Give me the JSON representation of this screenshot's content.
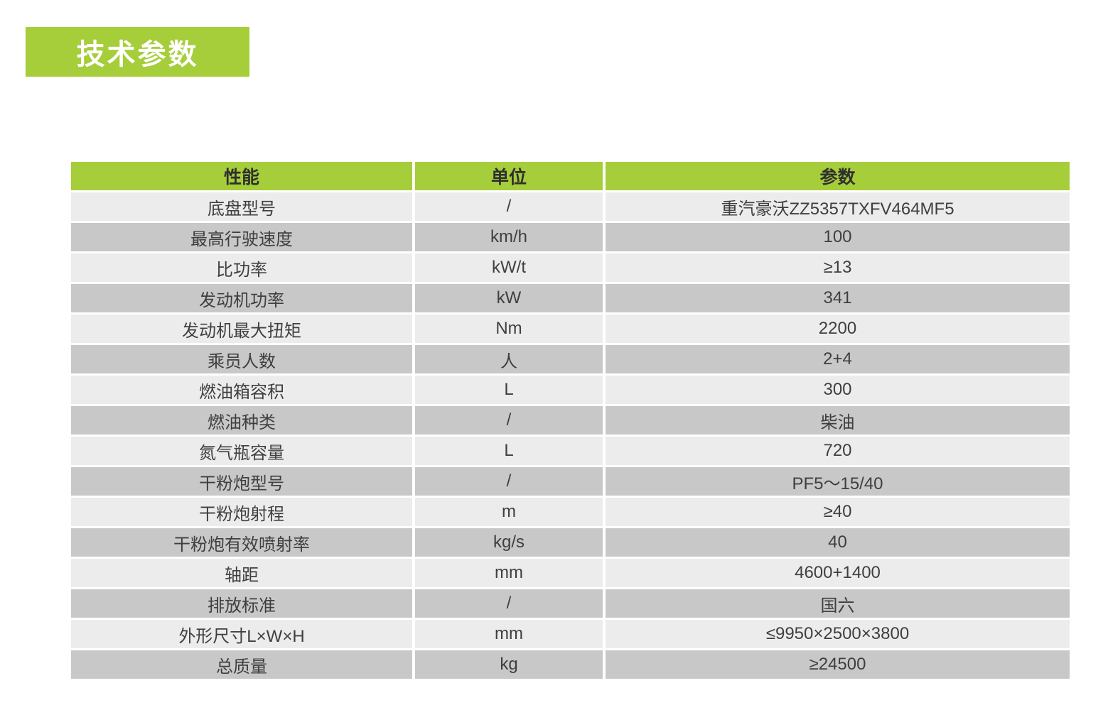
{
  "colors": {
    "page_bg": "#ffffff",
    "accent_green": "#a6cd3a",
    "row_light": "#ececec",
    "row_dark": "#c8c8c8",
    "header_text": "#2f2f2f",
    "cell_text": "#3f3f3f",
    "title_text": "#ffffff"
  },
  "title": {
    "label": "技术参数"
  },
  "table": {
    "headers": [
      "性能",
      "单位",
      "参数"
    ],
    "rows": [
      {
        "name": "底盘型号",
        "unit": "/",
        "value": "重汽豪沃ZZ5357TXFV464MF5"
      },
      {
        "name": "最高行驶速度",
        "unit": "km/h",
        "value": "100"
      },
      {
        "name": "比功率",
        "unit": "kW/t",
        "value": "≥13"
      },
      {
        "name": "发动机功率",
        "unit": "kW",
        "value": "341"
      },
      {
        "name": "发动机最大扭矩",
        "unit": "Nm",
        "value": "2200"
      },
      {
        "name": "乘员人数",
        "unit": "人",
        "value": "2+4"
      },
      {
        "name": "燃油箱容积",
        "unit": "L",
        "value": "300"
      },
      {
        "name": "燃油种类",
        "unit": "/",
        "value": "柴油"
      },
      {
        "name": "氮气瓶容量",
        "unit": "L",
        "value": "720"
      },
      {
        "name": "干粉炮型号",
        "unit": "/",
        "value": "PF5～15/40"
      },
      {
        "name": "干粉炮射程",
        "unit": "m",
        "value": "≥40"
      },
      {
        "name": "干粉炮有效喷射率",
        "unit": "kg/s",
        "value": "40"
      },
      {
        "name": "轴距",
        "unit": "mm",
        "value": "4600+1400"
      },
      {
        "name": "排放标准",
        "unit": "/",
        "value": "国六"
      },
      {
        "name": "外形尺寸L×W×H",
        "unit": "mm",
        "value": "≤9950×2500×3800"
      },
      {
        "name": "总质量",
        "unit": "kg",
        "value": "≥24500"
      }
    ]
  }
}
